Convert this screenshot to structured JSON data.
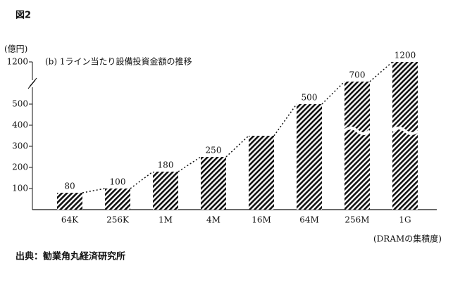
{
  "figure_label": "図2",
  "chart_data": {
    "type": "bar",
    "title": "(b) 1ライン当たり設備投資金額の推移",
    "y_label": "(億円)",
    "x_label": "(DRAMの集積度)",
    "categories": [
      "64K",
      "256K",
      "1M",
      "4M",
      "16M",
      "64M",
      "256M",
      "1G"
    ],
    "values": [
      80,
      100,
      180,
      250,
      350,
      500,
      700,
      1200
    ],
    "value_labels": [
      "80",
      "100",
      "180",
      "250",
      null,
      "500",
      "700",
      "1200"
    ],
    "color": "#111111",
    "ylim": [
      0,
      1200
    ],
    "yticks": [
      100,
      200,
      300,
      400,
      500,
      1200
    ],
    "broken_axis": true,
    "grid": false
  },
  "source": "出典：勧業角丸経済研究所"
}
